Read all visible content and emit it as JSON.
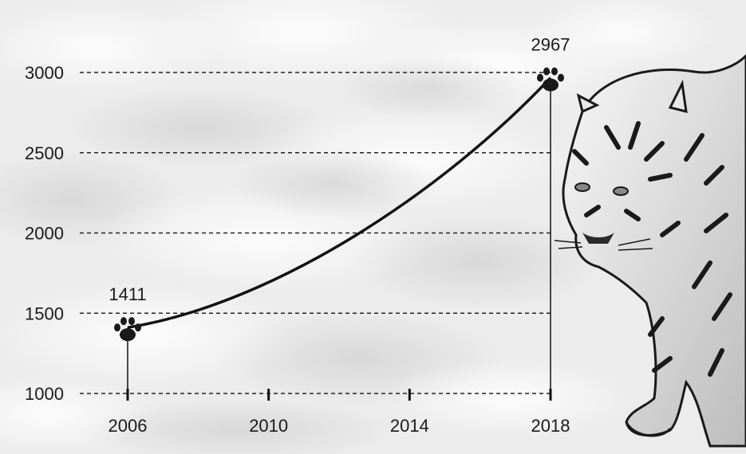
{
  "chart_data": {
    "type": "line",
    "title": "",
    "xlabel": "",
    "ylabel": "",
    "x_ticks": [
      2006,
      2010,
      2014,
      2018
    ],
    "y_ticks": [
      1000,
      1500,
      2000,
      2500,
      3000
    ],
    "xlim": [
      2006,
      2018
    ],
    "ylim": [
      1000,
      3000
    ],
    "grid": "horizontal-dashed",
    "series": [
      {
        "points": [
          {
            "x": 2006,
            "y": 1411,
            "label": "1411"
          },
          {
            "x": 2018,
            "y": 2967,
            "label": "2967"
          }
        ]
      }
    ],
    "colors": {
      "line": "#111111",
      "background": "#ececec"
    },
    "marker_icon": "paw-print-icon",
    "decoration_icon": "tiger-illustration-icon"
  }
}
